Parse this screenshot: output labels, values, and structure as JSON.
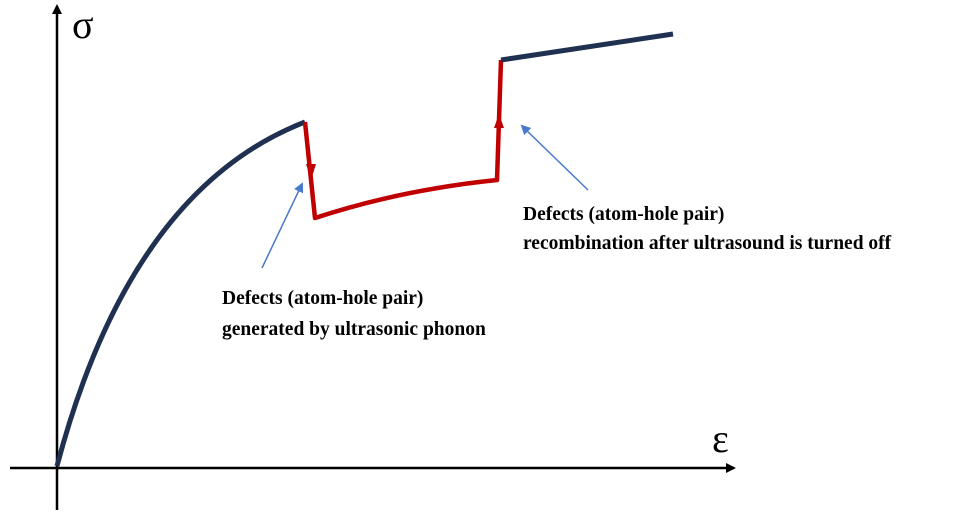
{
  "axes": {
    "y_label": "σ",
    "x_label": "ε"
  },
  "annotations": [
    {
      "lines": [
        "Defects (atom-hole pair)",
        "generated by ultrasonic phonon"
      ]
    },
    {
      "lines": [
        "Defects (atom-hole pair)",
        "recombination after ultrasound is turned off"
      ]
    }
  ]
}
